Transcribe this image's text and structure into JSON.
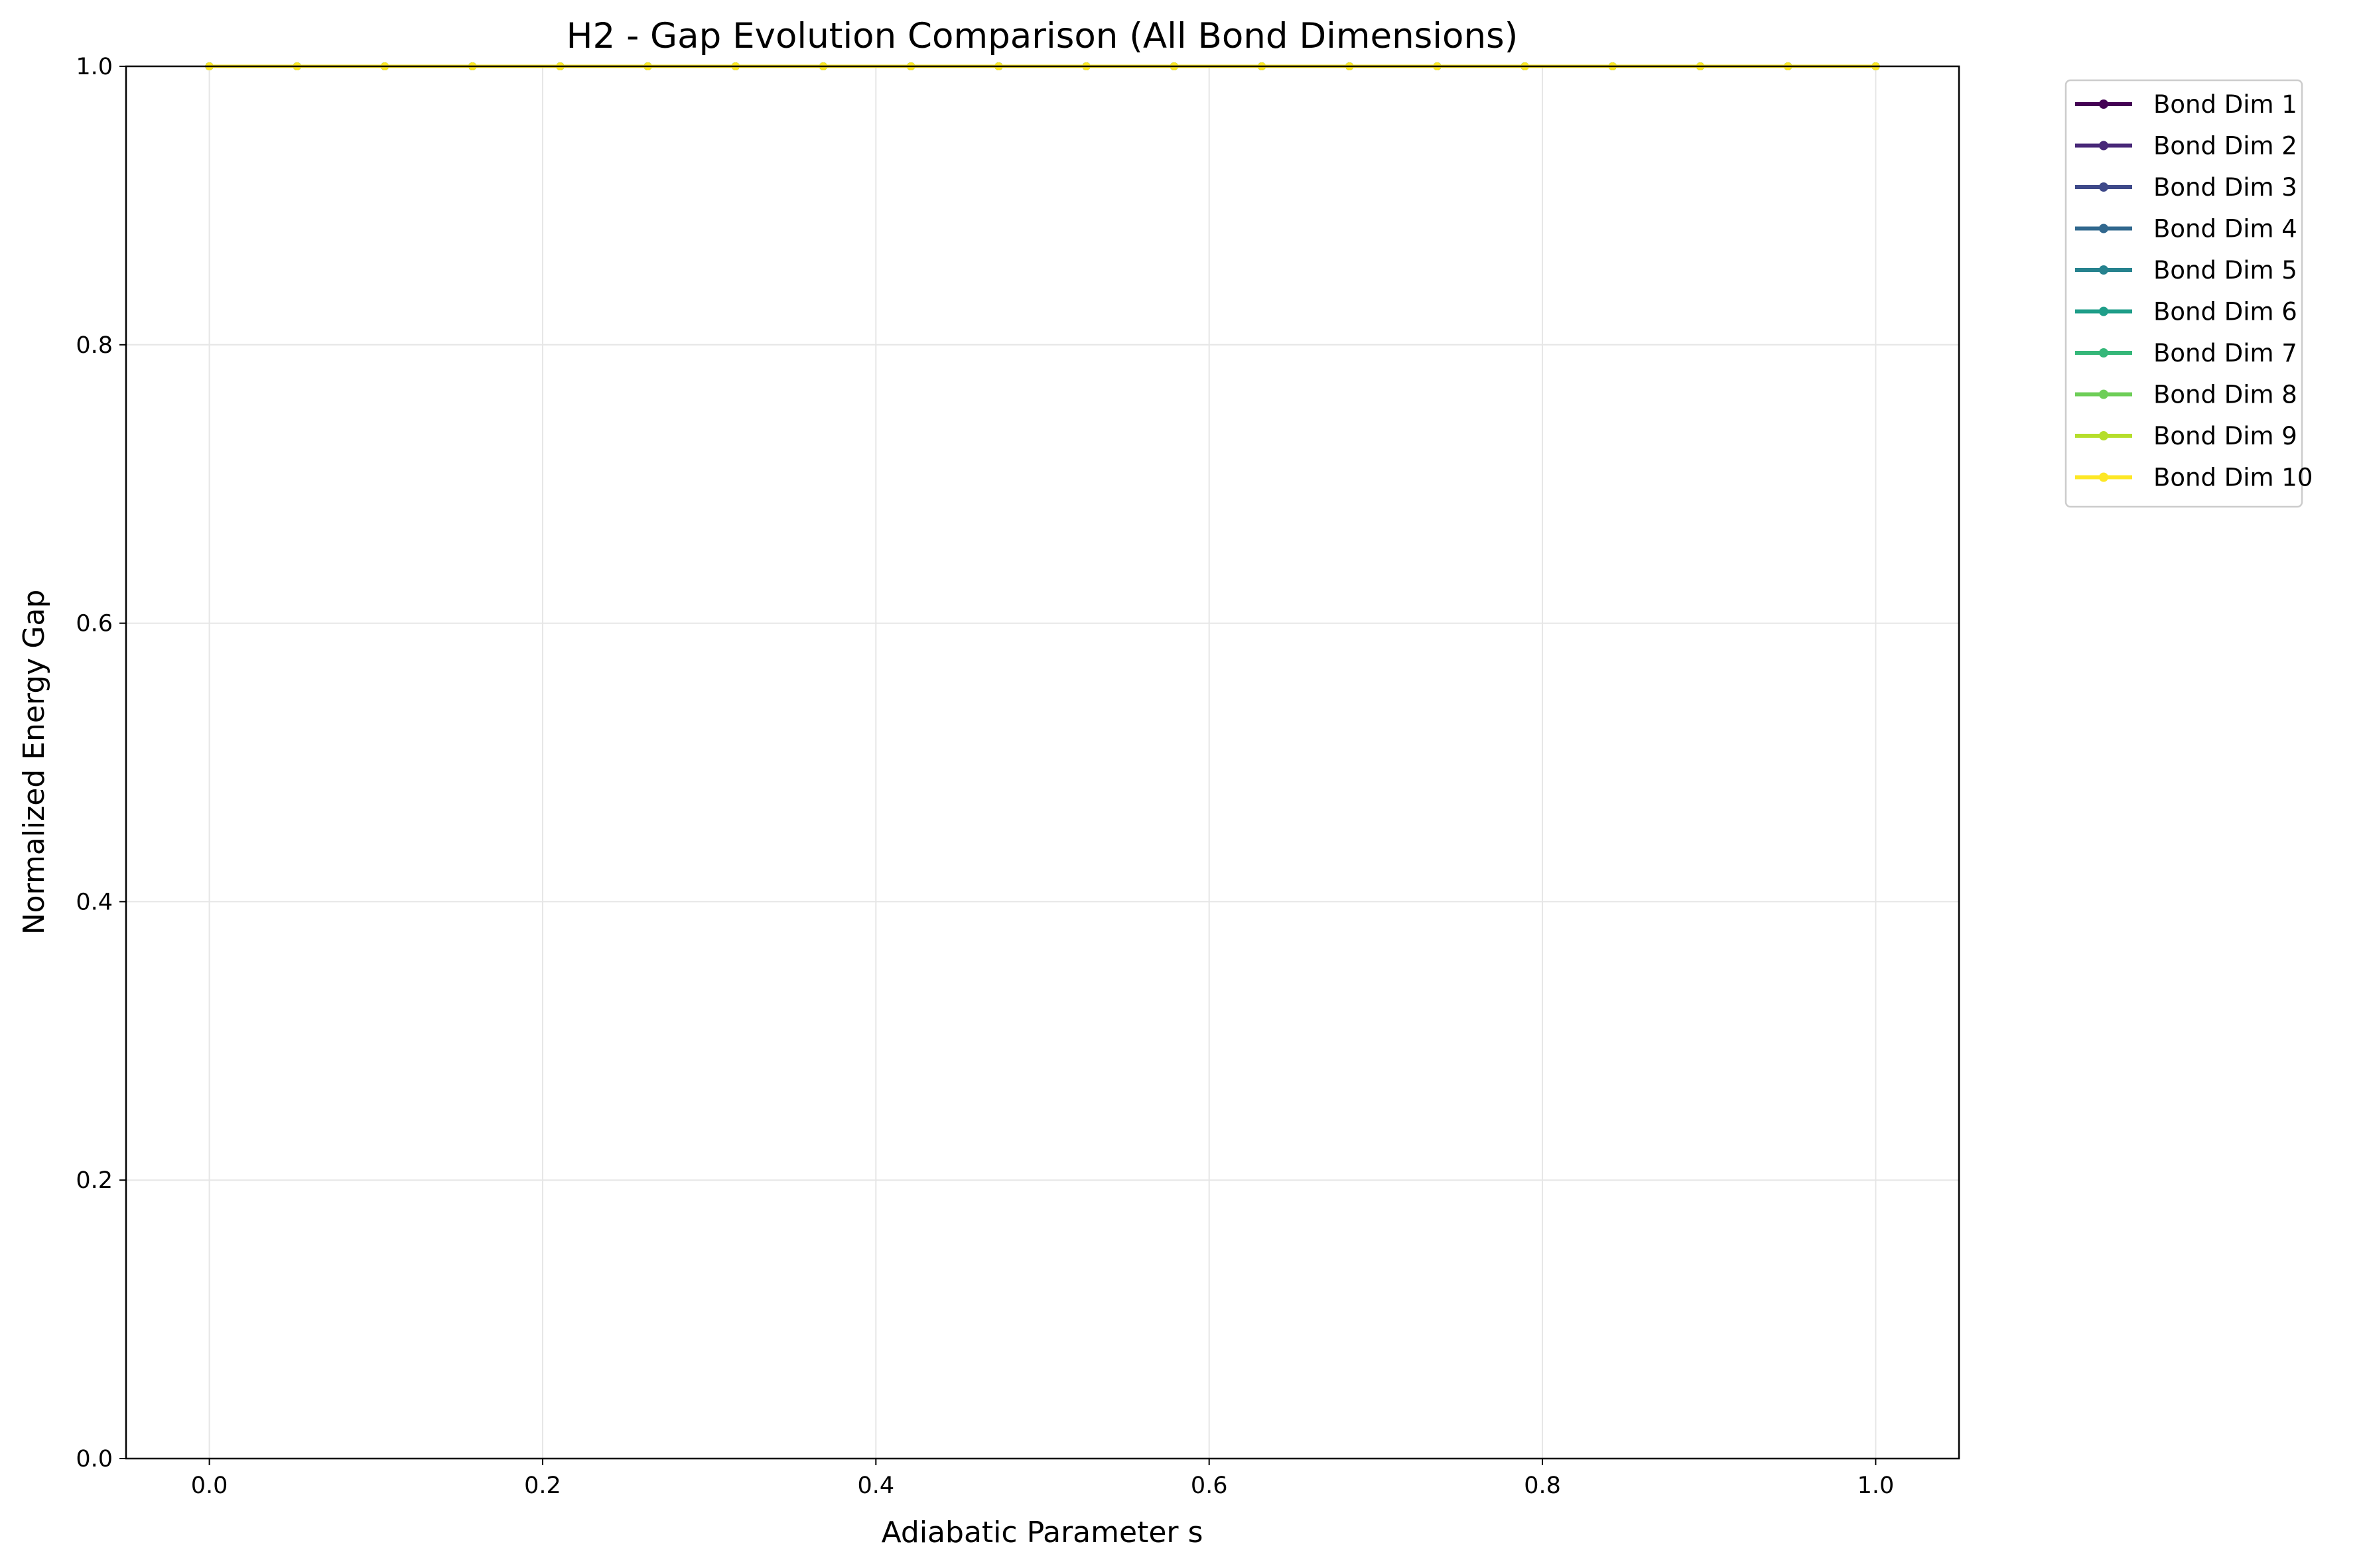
{
  "chart_data": {
    "type": "line",
    "title": "H2 - Gap Evolution Comparison (All Bond Dimensions)",
    "xlabel": "Adiabatic Parameter s",
    "ylabel": "Normalized Energy Gap",
    "xlim": [
      -0.05,
      1.05
    ],
    "ylim": [
      0.0,
      1.0
    ],
    "xticks": [
      "0.0",
      "0.2",
      "0.4",
      "0.6",
      "0.8",
      "1.0"
    ],
    "xtick_values": [
      0.0,
      0.2,
      0.4,
      0.6,
      0.8,
      1.0
    ],
    "yticks": [
      "0.0",
      "0.2",
      "0.4",
      "0.6",
      "0.8",
      "1.0"
    ],
    "ytick_values": [
      0.0,
      0.2,
      0.4,
      0.6,
      0.8,
      1.0
    ],
    "grid": true,
    "legend_position": "outside-top-right",
    "x": [
      0.0,
      0.05263,
      0.10526,
      0.15789,
      0.21053,
      0.26316,
      0.31579,
      0.36842,
      0.42105,
      0.47368,
      0.52632,
      0.57895,
      0.63158,
      0.68421,
      0.73684,
      0.78947,
      0.84211,
      0.89474,
      0.94737,
      1.0
    ],
    "series": [
      {
        "name": "Bond Dim 1",
        "color": "#440154",
        "values": [
          1,
          1,
          1,
          1,
          1,
          1,
          1,
          1,
          1,
          1,
          1,
          1,
          1,
          1,
          1,
          1,
          1,
          1,
          1,
          1
        ]
      },
      {
        "name": "Bond Dim 2",
        "color": "#482878",
        "values": [
          1,
          1,
          1,
          1,
          1,
          1,
          1,
          1,
          1,
          1,
          1,
          1,
          1,
          1,
          1,
          1,
          1,
          1,
          1,
          1
        ]
      },
      {
        "name": "Bond Dim 3",
        "color": "#3e4989",
        "values": [
          1,
          1,
          1,
          1,
          1,
          1,
          1,
          1,
          1,
          1,
          1,
          1,
          1,
          1,
          1,
          1,
          1,
          1,
          1,
          1
        ]
      },
      {
        "name": "Bond Dim 4",
        "color": "#31688e",
        "values": [
          1,
          1,
          1,
          1,
          1,
          1,
          1,
          1,
          1,
          1,
          1,
          1,
          1,
          1,
          1,
          1,
          1,
          1,
          1,
          1
        ]
      },
      {
        "name": "Bond Dim 5",
        "color": "#26828e",
        "values": [
          1,
          1,
          1,
          1,
          1,
          1,
          1,
          1,
          1,
          1,
          1,
          1,
          1,
          1,
          1,
          1,
          1,
          1,
          1,
          1
        ]
      },
      {
        "name": "Bond Dim 6",
        "color": "#1f9e89",
        "values": [
          1,
          1,
          1,
          1,
          1,
          1,
          1,
          1,
          1,
          1,
          1,
          1,
          1,
          1,
          1,
          1,
          1,
          1,
          1,
          1
        ]
      },
      {
        "name": "Bond Dim 7",
        "color": "#35b779",
        "values": [
          1,
          1,
          1,
          1,
          1,
          1,
          1,
          1,
          1,
          1,
          1,
          1,
          1,
          1,
          1,
          1,
          1,
          1,
          1,
          1
        ]
      },
      {
        "name": "Bond Dim 8",
        "color": "#6ece58",
        "values": [
          1,
          1,
          1,
          1,
          1,
          1,
          1,
          1,
          1,
          1,
          1,
          1,
          1,
          1,
          1,
          1,
          1,
          1,
          1,
          1
        ]
      },
      {
        "name": "Bond Dim 9",
        "color": "#b5de2b",
        "values": [
          1,
          1,
          1,
          1,
          1,
          1,
          1,
          1,
          1,
          1,
          1,
          1,
          1,
          1,
          1,
          1,
          1,
          1,
          1,
          1
        ]
      },
      {
        "name": "Bond Dim 10",
        "color": "#fde725",
        "values": [
          1,
          1,
          1,
          1,
          1,
          1,
          1,
          1,
          1,
          1,
          1,
          1,
          1,
          1,
          1,
          1,
          1,
          1,
          1,
          1
        ]
      }
    ]
  }
}
